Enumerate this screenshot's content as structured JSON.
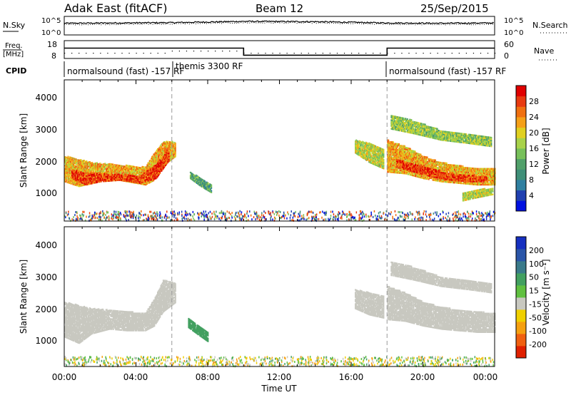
{
  "header": {
    "title": "Adak East (fitACF)",
    "beam": "Beam 12",
    "date": "25/Sep/2015"
  },
  "nsky_panel": {
    "label": "N.Sky",
    "right_label": "N.Search",
    "yticks_left": [
      "10^5",
      "10^0"
    ],
    "yticks_right": [
      "10^5",
      "10^0"
    ]
  },
  "freq_panel": {
    "label": "Freq.",
    "unit": "[MHz]",
    "right_label": "Nave",
    "yticks_left": [
      "18",
      "8"
    ],
    "yticks_right": [
      "60",
      "0"
    ]
  },
  "cpid": {
    "label": "CPID",
    "segments": [
      {
        "name": "normalsound (fast) -157 RF",
        "start": 0,
        "end": 6
      },
      {
        "name": "themis 3300 RF",
        "start": 6,
        "end": 18
      },
      {
        "name": "normalsound (fast) -157 RF",
        "start": 18,
        "end": 24
      }
    ]
  },
  "xaxis": {
    "label": "Time UT",
    "ticks": [
      "00:00",
      "04:00",
      "08:00",
      "12:00",
      "16:00",
      "20:00",
      "00:00"
    ]
  },
  "power_panel": {
    "ylabel": "Slant Range [km]",
    "yticks": [
      "1000",
      "2000",
      "3000",
      "4000"
    ],
    "colorbar": {
      "label": "Power [dB]",
      "ticks": [
        "4",
        "8",
        "12",
        "16",
        "20",
        "24",
        "28"
      ],
      "colors": [
        "#0010e0",
        "#2040b0",
        "#2f7fa0",
        "#3f8f78",
        "#51a06a",
        "#77c05a",
        "#a8d24a",
        "#e0d020",
        "#f5a018",
        "#f07010",
        "#e83a10",
        "#e00000"
      ]
    }
  },
  "velocity_panel": {
    "ylabel": "Slant Range [km]",
    "yticks": [
      "1000",
      "2000",
      "3000",
      "4000"
    ],
    "colorbar": {
      "label": "Velocity [m s⁻¹]",
      "ticks": [
        "200",
        "100",
        "50",
        "15",
        "-15",
        "-50",
        "-100",
        "-200"
      ],
      "colors": [
        "#1630c0",
        "#2a55a8",
        "#3a7a8a",
        "#42a060",
        "#60c040",
        "#c8c8c0",
        "#f0d000",
        "#f5a010",
        "#f06010",
        "#e02000"
      ]
    }
  },
  "chart_data": [
    {
      "type": "line",
      "title": "N.Sky / N.Search",
      "x": [
        0,
        3,
        6,
        10,
        14,
        18,
        21,
        24
      ],
      "series": [
        {
          "name": "N.Sky",
          "values": [
            3.5,
            3.6,
            3.7,
            4.1,
            4.0,
            3.6,
            3.5,
            3.6
          ]
        }
      ],
      "xlim": [
        0,
        24
      ]
    },
    {
      "type": "line",
      "title": "Freq. / Nave",
      "x": [
        0,
        6,
        6,
        10,
        10,
        18,
        18,
        24
      ],
      "series": [
        {
          "name": "Freq. [MHz]",
          "values": [
            15.5,
            15.5,
            15.5,
            15.5,
            10.0,
            10.0,
            15.5,
            15.5
          ]
        }
      ],
      "xlim": [
        0,
        24
      ]
    },
    {
      "type": "heatmap",
      "title": "Power [dB]",
      "xlabel": "Time UT",
      "ylabel": "Slant Range [km]",
      "xlim": [
        0,
        24
      ],
      "ylim": [
        180,
        4600
      ],
      "zlim": [
        0,
        32
      ],
      "bands": [
        {
          "t": [
            0.0,
            0.8,
            1.5,
            2.5,
            3.5,
            4.5,
            5.0,
            5.5,
            6.2
          ],
          "r_lo": [
            1400,
            1250,
            1350,
            1500,
            1400,
            1300,
            1450,
            1900,
            2200
          ],
          "r_hi": [
            2200,
            2100,
            2000,
            1950,
            1900,
            1850,
            2300,
            2650,
            2650
          ],
          "z": 22
        },
        {
          "t": [
            0.4,
            1.2,
            2.0,
            3.2,
            4.2,
            5.1,
            5.8
          ],
          "r_lo": [
            1500,
            1300,
            1400,
            1450,
            1350,
            1500,
            2050
          ],
          "r_hi": [
            1800,
            1650,
            1650,
            1620,
            1580,
            1950,
            2500
          ],
          "z": 28
        },
        {
          "t": [
            7.0,
            7.6,
            8.2
          ],
          "r_lo": [
            1500,
            1250,
            1050
          ],
          "r_hi": [
            1700,
            1500,
            1300
          ],
          "z": 12
        },
        {
          "t": [
            16.2,
            17.0,
            17.8
          ],
          "r_lo": [
            2300,
            2000,
            1800
          ],
          "r_hi": [
            2700,
            2600,
            2400
          ],
          "z": 18
        },
        {
          "t": [
            18.0,
            19.0,
            20.0,
            21.0,
            22.0,
            23.0,
            24.0
          ],
          "r_lo": [
            1700,
            1650,
            1500,
            1400,
            1350,
            1300,
            1300
          ],
          "r_hi": [
            2700,
            2500,
            2200,
            2000,
            1900,
            1800,
            1800
          ],
          "z": 22
        },
        {
          "t": [
            18.5,
            19.5,
            20.5,
            21.5,
            22.5,
            23.5
          ],
          "r_lo": [
            1850,
            1700,
            1550,
            1450,
            1400,
            1400
          ],
          "r_hi": [
            2100,
            1950,
            1800,
            1650,
            1600,
            1550
          ],
          "z": 28
        },
        {
          "t": [
            18.2,
            19.5,
            21.0,
            22.5,
            23.8
          ],
          "r_lo": [
            3050,
            2900,
            2700,
            2600,
            2500
          ],
          "r_hi": [
            3500,
            3300,
            3000,
            2900,
            2800
          ],
          "z": 16
        },
        {
          "t": [
            22.2,
            23.0,
            23.9
          ],
          "r_lo": [
            800,
            900,
            1000
          ],
          "r_hi": [
            1050,
            1150,
            1200
          ],
          "z": 18
        }
      ]
    },
    {
      "type": "heatmap",
      "title": "Velocity [m s⁻¹]",
      "xlabel": "Time UT",
      "ylabel": "Slant Range [km]",
      "xlim": [
        0,
        24
      ],
      "ylim": [
        180,
        4600
      ],
      "zlim": [
        -200,
        200
      ],
      "bands": [
        {
          "t": [
            0.0,
            0.8,
            1.5,
            2.5,
            3.5,
            4.5,
            5.0,
            5.5,
            6.2
          ],
          "r_lo": [
            1100,
            900,
            1200,
            1350,
            1300,
            1300,
            1450,
            1900,
            2200
          ],
          "r_hi": [
            2200,
            2100,
            2000,
            1950,
            1900,
            1850,
            2300,
            2900,
            2800
          ],
          "z": 0
        },
        {
          "t": [
            6.9,
            7.5,
            8.0
          ],
          "r_lo": [
            1400,
            1150,
            950
          ],
          "r_hi": [
            1700,
            1450,
            1250
          ],
          "z": 40
        },
        {
          "t": [
            16.2,
            17.0,
            17.8
          ],
          "r_lo": [
            2000,
            1800,
            1700
          ],
          "r_hi": [
            2600,
            2500,
            2400
          ],
          "z": 0
        },
        {
          "t": [
            18.0,
            19.0,
            20.0,
            21.0,
            22.0,
            23.0,
            24.0
          ],
          "r_lo": [
            1650,
            1600,
            1450,
            1350,
            1300,
            1250,
            1250
          ],
          "r_hi": [
            2700,
            2500,
            2200,
            2050,
            1950,
            1900,
            1850
          ],
          "z": 0
        },
        {
          "t": [
            18.2,
            19.5,
            21.0,
            22.5,
            23.8
          ],
          "r_lo": [
            3050,
            2900,
            2700,
            2600,
            2500
          ],
          "r_hi": [
            3500,
            3300,
            3000,
            2900,
            2800
          ],
          "z": 0
        }
      ]
    }
  ]
}
